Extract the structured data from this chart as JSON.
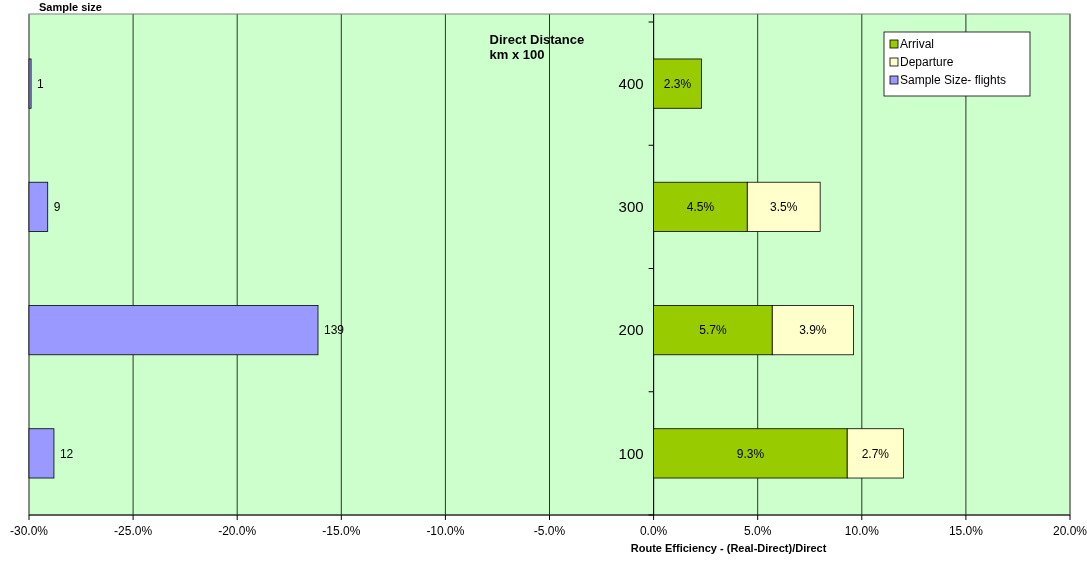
{
  "chart_data": [
    {
      "type": "bar",
      "orientation": "horizontal",
      "title": "Sample size",
      "categories": [
        null,
        null,
        null,
        null
      ],
      "series": [
        {
          "name": "Sample Size- flights",
          "color": "#9999ff",
          "values": [
            1,
            9,
            139,
            12
          ]
        }
      ],
      "data_labels": true
    },
    {
      "type": "bar",
      "orientation": "horizontal",
      "stacked": true,
      "categories": [
        "400",
        "300",
        "200",
        "100"
      ],
      "series": [
        {
          "name": "Arrival",
          "color": "#99cc00",
          "values": [
            2.3,
            4.5,
            5.7,
            9.3
          ],
          "value_labels": [
            "2.3%",
            "4.5%",
            "5.7%",
            "9.3%"
          ]
        },
        {
          "name": "Departure",
          "color": "#ffffcc",
          "values": [
            null,
            3.5,
            3.9,
            2.7
          ],
          "value_labels": [
            null,
            "3.5%",
            "3.9%",
            "2.7%"
          ]
        }
      ],
      "xlim": [
        -30,
        20
      ],
      "xticks": [
        {
          "value": -30,
          "label": "-30.0%"
        },
        {
          "value": -25,
          "label": "-25.0%"
        },
        {
          "value": -20,
          "label": "-20.0%"
        },
        {
          "value": -15,
          "label": "-15.0%"
        },
        {
          "value": -10,
          "label": "-10.0%"
        },
        {
          "value": -5,
          "label": "-5.0%"
        },
        {
          "value": 0,
          "label": "0.0%"
        },
        {
          "value": 5,
          "label": "5.0%"
        },
        {
          "value": 10,
          "label": "10.0%"
        },
        {
          "value": 15,
          "label": "15.0%"
        },
        {
          "value": 20,
          "label": "20.0%"
        }
      ],
      "grid": "x",
      "legend": "top right",
      "xlabel": "Route Efficiency - (Real-Direct)/Direct",
      "ylabel": "Direct Distance\nkm x 100"
    }
  ]
}
